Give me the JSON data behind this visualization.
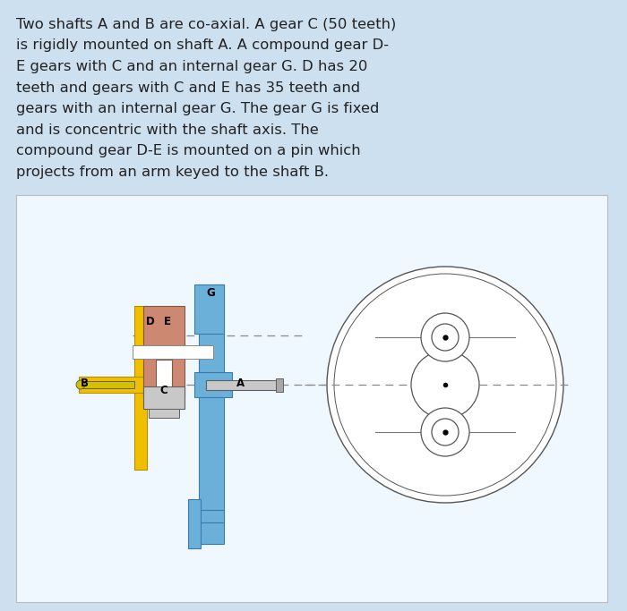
{
  "background_color": "#cce0f0",
  "diagram_bg": "#f0f8ff",
  "text_line1": "Two shafts A and B are co-axial. A gear C (50 teeth)",
  "text_line2": "is rigidly mounted on shaft A. A compound gear D-",
  "text_line3": "E gears with C and an internal gear G. D has 20",
  "text_line4": "teeth and gears with C and E has 35 teeth and",
  "text_line5": "gears with an internal gear G. The gear G is fixed",
  "text_line6": "and is concentric with the shaft axis. The",
  "text_line7": "compound gear D-E is mounted on a pin which",
  "text_line8": "projects from an arm keyed to the shaft B.",
  "text_fontsize": 11.8,
  "text_color": "#222222",
  "blue_color": "#6ab0d8",
  "yellow_color": "#f0c000",
  "salmon_color": "#cc8870",
  "gray_color": "#a8a8a8",
  "light_gray": "#c8c8c8",
  "white_color": "#ffffff",
  "dark_gray": "#606060",
  "line_color": "#555555",
  "label_fontsize": 8.5,
  "label_color": "#111111"
}
